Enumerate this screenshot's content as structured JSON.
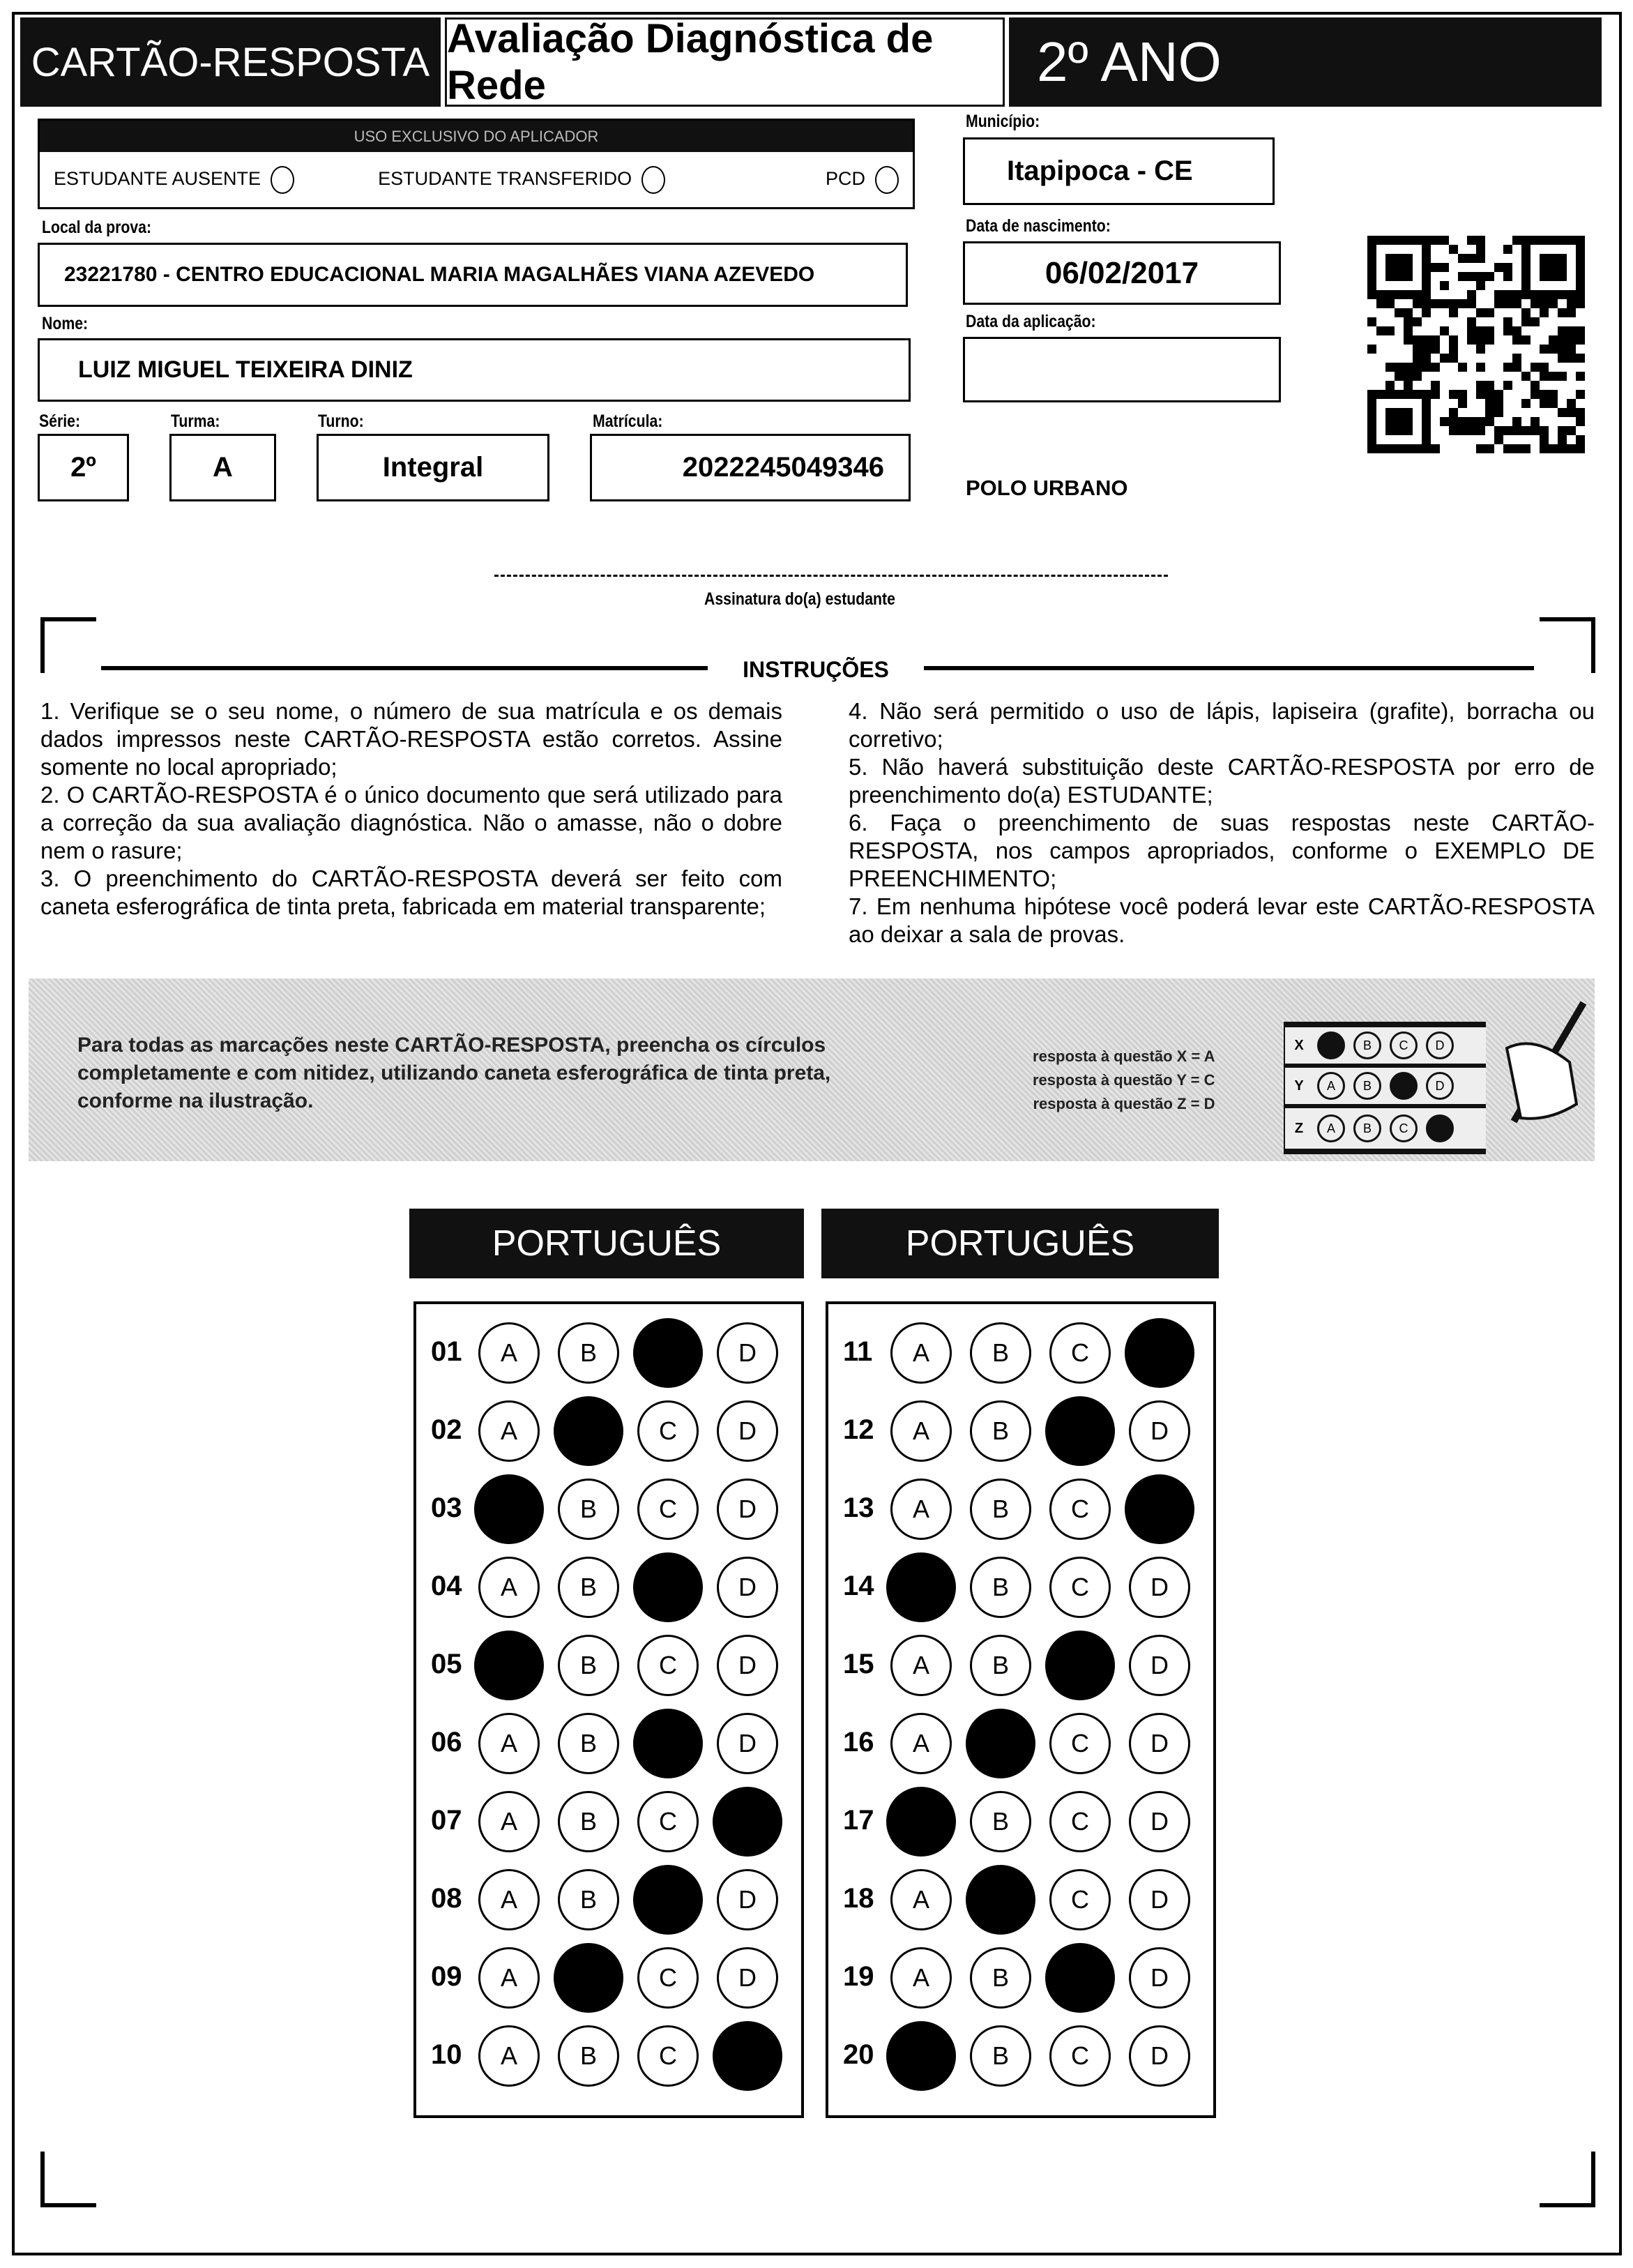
{
  "header": {
    "title": "CARTÃO-RESPOSTA",
    "subtitle": "Avaliação Diagnóstica de Rede",
    "grade": "2º ANO"
  },
  "applicator": {
    "title": "USO EXCLUSIVO DO APLICADOR",
    "options": [
      "ESTUDANTE AUSENTE",
      "ESTUDANTE TRANSFERIDO",
      "PCD"
    ]
  },
  "fields": {
    "municipio_label": "Município:",
    "municipio": "Itapipoca - CE",
    "local_label": "Local da prova:",
    "local": "23221780 - CENTRO EDUCACIONAL MARIA MAGALHÃES VIANA AZEVEDO",
    "nascimento_label": "Data de nascimento:",
    "nascimento": "06/02/2017",
    "nome_label": "Nome:",
    "nome": "LUIZ MIGUEL TEIXEIRA DINIZ",
    "aplicacao_label": "Data da aplicação:",
    "aplicacao": "",
    "serie_label": "Série:",
    "serie": "2º",
    "turma_label": "Turma:",
    "turma": "A",
    "turno_label": "Turno:",
    "turno": "Integral",
    "matricula_label": "Matrícula:",
    "matricula": "2022245049346",
    "polo": "POLO URBANO",
    "assinatura_label": "Assinatura do(a) estudante"
  },
  "instructions": {
    "title": "INSTRUÇÕES",
    "left": [
      "1. Verifique se o seu nome, o número de sua matrícula e os demais dados impressos neste CARTÃO-RESPOSTA estão corretos. Assine somente no local apropriado;",
      "2. O CARTÃO-RESPOSTA é o único documento que será utilizado para a correção da sua avaliação diagnóstica. Não o amasse, não o dobre nem o rasure;",
      "3. O preenchimento do CARTÃO-RESPOSTA deverá ser feito com caneta esferográfica de tinta preta, fabricada em material transparente;"
    ],
    "right": [
      "4. Não será permitido o uso de lápis, lapiseira (grafite), borracha ou corretivo;",
      "5. Não haverá substituição deste CARTÃO-RESPOSTA por erro de preenchimento do(a) ESTUDANTE;",
      "6. Faça o preenchimento de suas respostas neste CARTÃO-RESPOSTA, nos campos apropriados, conforme o EXEMPLO DE PREENCHIMENTO;",
      "7. Em nenhuma hipótese você poderá levar este CARTÃO-RESPOSTA ao deixar a sala de provas."
    ]
  },
  "example": {
    "text": "Para todas as marcações neste CARTÃO-RESPOSTA, preencha os círculos completamente e com nitidez, utilizando caneta esferográfica de tinta preta, conforme na ilustração.",
    "legend": [
      "resposta à questão X = A",
      "resposta à questão Y = C",
      "resposta à questão Z = D"
    ],
    "rows": [
      {
        "label": "X",
        "marked": "A"
      },
      {
        "label": "Y",
        "marked": "C"
      },
      {
        "label": "Z",
        "marked": "D"
      }
    ]
  },
  "options": [
    "A",
    "B",
    "C",
    "D"
  ],
  "sections": [
    {
      "subject": "PORTUGUÊS",
      "questions": [
        {
          "n": "01",
          "marked": "C"
        },
        {
          "n": "02",
          "marked": "B"
        },
        {
          "n": "03",
          "marked": "A"
        },
        {
          "n": "04",
          "marked": "C"
        },
        {
          "n": "05",
          "marked": "A"
        },
        {
          "n": "06",
          "marked": "C"
        },
        {
          "n": "07",
          "marked": "D"
        },
        {
          "n": "08",
          "marked": "C"
        },
        {
          "n": "09",
          "marked": "B"
        },
        {
          "n": "10",
          "marked": "D"
        }
      ]
    },
    {
      "subject": "PORTUGUÊS",
      "questions": [
        {
          "n": "11",
          "marked": "D"
        },
        {
          "n": "12",
          "marked": "C"
        },
        {
          "n": "13",
          "marked": "D"
        },
        {
          "n": "14",
          "marked": "A"
        },
        {
          "n": "15",
          "marked": "C"
        },
        {
          "n": "16",
          "marked": "B"
        },
        {
          "n": "17",
          "marked": "A"
        },
        {
          "n": "18",
          "marked": "B"
        },
        {
          "n": "19",
          "marked": "C"
        },
        {
          "n": "20",
          "marked": "A"
        }
      ]
    }
  ]
}
